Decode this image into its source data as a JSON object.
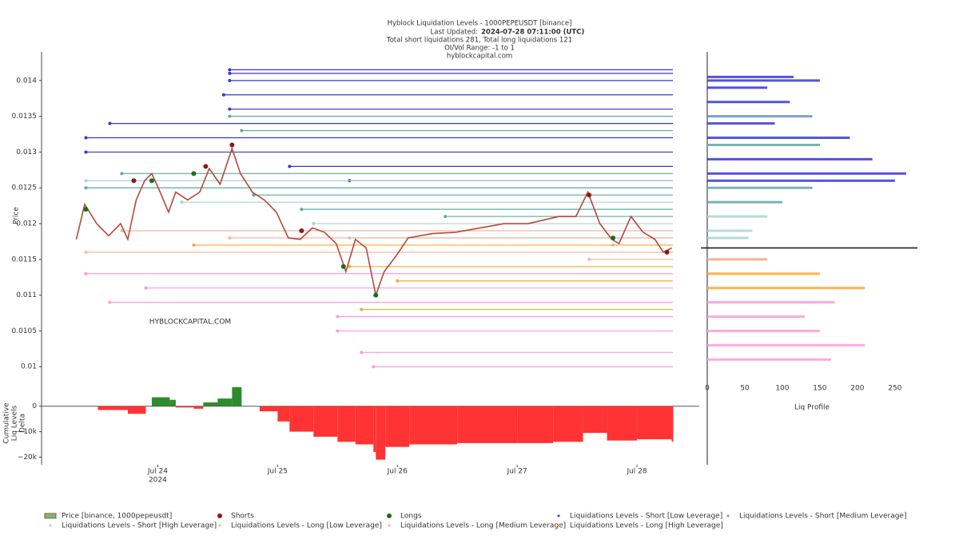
{
  "chart_data": [
    {
      "type": "line",
      "title": "Hyblock Liquidation Levels - 1000PEPEUSDT [binance]",
      "updated_label": "Last Updated:",
      "updated_value": "2024-07-28 07:11:00 (UTC)",
      "subtitle_lines": [
        "Total short liquidations 281, Total long liquidations 121",
        "OI/Vol Range: -1 to 1",
        "hyblockcapital.com"
      ],
      "watermark": "HYBLOCKCAPITAL.COM",
      "y_label": "Price",
      "xlim": [
        23.03,
        28.52
      ],
      "ylim": [
        0.00988,
        0.0144
      ],
      "yticks": [
        0.01,
        0.0105,
        0.011,
        0.0115,
        0.012,
        0.0125,
        0.013,
        0.0135,
        0.014
      ],
      "series": [
        {
          "name": "Price [binance, 1000pepeusdt]",
          "color": "#b5483a",
          "mode": "line",
          "x": [
            23.32,
            23.39,
            23.49,
            23.59,
            23.69,
            23.75,
            23.82,
            23.89,
            23.95,
            24.02,
            24.09,
            24.15,
            24.25,
            24.35,
            24.43,
            24.52,
            24.62,
            24.69,
            24.79,
            24.89,
            24.99,
            25.09,
            25.19,
            25.29,
            25.39,
            25.49,
            25.57,
            25.65,
            25.74,
            25.82,
            25.89,
            25.99,
            26.09,
            26.29,
            26.49,
            26.69,
            26.89,
            27.09,
            27.35,
            27.49,
            27.59,
            27.69,
            27.79,
            27.85,
            27.95,
            28.05,
            28.15,
            28.22,
            28.29
          ],
          "values": [
            0.01178,
            0.01227,
            0.012,
            0.01183,
            0.012,
            0.01178,
            0.01233,
            0.0126,
            0.0127,
            0.01244,
            0.01216,
            0.01244,
            0.01233,
            0.01244,
            0.01277,
            0.01255,
            0.01305,
            0.0127,
            0.01244,
            0.01233,
            0.01216,
            0.0118,
            0.01178,
            0.01194,
            0.01188,
            0.01172,
            0.01133,
            0.01178,
            0.01166,
            0.011,
            0.01133,
            0.01155,
            0.0118,
            0.01186,
            0.01188,
            0.01194,
            0.012,
            0.012,
            0.0121,
            0.0121,
            0.01244,
            0.012,
            0.01178,
            0.01172,
            0.0121,
            0.01188,
            0.01178,
            0.0116,
            0.01166
          ]
        },
        {
          "name": "Shorts",
          "color": "#8b1a1a",
          "mode": "markers",
          "x": [
            23.8,
            24.4,
            24.62,
            25.2,
            27.6,
            28.25
          ],
          "values": [
            0.0126,
            0.0128,
            0.0131,
            0.0119,
            0.0124,
            0.0116
          ]
        },
        {
          "name": "Longs",
          "color": "#1e6b1e",
          "mode": "markers",
          "x": [
            23.4,
            23.95,
            24.3,
            25.55,
            25.82,
            27.8
          ],
          "values": [
            0.0122,
            0.0126,
            0.0127,
            0.0114,
            0.011,
            0.0118
          ]
        },
        {
          "name": "Liquidations Levels - Short [Low Leverage]",
          "color": "#3535d8",
          "mode": "levels",
          "x": [
            24.6,
            24.6,
            24.6,
            24.55,
            24.6,
            23.6,
            23.4,
            23.4,
            25.1,
            25.6
          ],
          "values": [
            0.01415,
            0.0141,
            0.014,
            0.0138,
            0.0136,
            0.0134,
            0.0132,
            0.013,
            0.0128,
            0.0126
          ]
        },
        {
          "name": "Liquidations Levels - Short [Medium Leverage]",
          "color": "#5fa8a0",
          "mode": "levels",
          "x": [
            24.6,
            24.7,
            23.7,
            23.4,
            24.8,
            25.2,
            26.4
          ],
          "values": [
            0.0135,
            0.0133,
            0.0127,
            0.0125,
            0.0124,
            0.0122,
            0.0121
          ]
        },
        {
          "name": "Liquidations Levels - Short [High Leverage]",
          "color": "#a8d5cc",
          "mode": "levels",
          "x": [
            23.4,
            24.2,
            25.3,
            25.6,
            27.8
          ],
          "values": [
            0.0126,
            0.0123,
            0.012,
            0.0118,
            0.0117
          ]
        },
        {
          "name": "Liquidations Levels - Long [Low Leverage]",
          "color": "#f4b8a0",
          "mode": "levels",
          "x": [
            23.7,
            24.6,
            23.4,
            27.6
          ],
          "values": [
            0.0119,
            0.0118,
            0.0116,
            0.0115
          ]
        },
        {
          "name": "Liquidations Levels - Long [Medium Leverage]",
          "color": "#ff99dd",
          "mode": "levels",
          "x": [
            23.4,
            23.9,
            23.6,
            25.5,
            25.5,
            25.7,
            25.8
          ],
          "values": [
            0.0113,
            0.0111,
            0.0109,
            0.0107,
            0.0105,
            0.0102,
            0.01
          ]
        },
        {
          "name": "Liquidations Levels - Long [High Leverage]",
          "color": "#ffa630",
          "mode": "levels",
          "x": [
            24.3,
            25.6,
            26.0,
            25.7
          ],
          "values": [
            0.0117,
            0.0114,
            0.0112,
            0.0108
          ]
        }
      ]
    },
    {
      "type": "area",
      "y_label_lines": [
        "Cumulative",
        "Liq Levels",
        "Delta"
      ],
      "xlim": [
        23.03,
        28.52
      ],
      "xticks": [
        {
          "value": 24,
          "label": "Jul 24"
        },
        {
          "value": 25,
          "label": "Jul 25"
        },
        {
          "value": 26,
          "label": "Jul 26"
        },
        {
          "value": 27,
          "label": "Jul 27"
        },
        {
          "value": 28,
          "label": "Jul 28"
        }
      ],
      "x_year_label": "2024",
      "ylim": [
        -23000,
        9000
      ],
      "yticks": [
        {
          "value": -20000,
          "label": "−20k"
        },
        {
          "value": -10000,
          "label": "−10k"
        },
        0
      ],
      "positive_color": "#2e8b2e",
      "negative_color": "#ff3333",
      "x": [
        23.32,
        23.5,
        23.75,
        23.9,
        23.95,
        24.1,
        24.15,
        24.3,
        24.38,
        24.5,
        24.62,
        24.7,
        24.85,
        25.0,
        25.1,
        25.3,
        25.5,
        25.65,
        25.8,
        25.82,
        25.9,
        26.1,
        26.5,
        27.0,
        27.3,
        27.55,
        27.75,
        28.0,
        28.29
      ],
      "values": [
        0,
        -1500,
        -3000,
        0,
        3500,
        2500,
        -500,
        -1000,
        1500,
        3000,
        7500,
        0,
        -2000,
        -6000,
        -10000,
        -12000,
        -14000,
        -15000,
        -18000,
        -21000,
        -16000,
        -15000,
        -14500,
        -14500,
        -14000,
        -10500,
        -13500,
        -13000,
        -14000
      ]
    },
    {
      "type": "bar",
      "x_label": "Liq Profile",
      "xlim": [
        0,
        280
      ],
      "xticks": [
        0,
        50,
        100,
        150,
        200,
        250
      ],
      "ylim": [
        0.00988,
        0.0144
      ],
      "current_price": 0.01166,
      "y": [
        0.01405,
        0.014,
        0.0139,
        0.0137,
        0.0135,
        0.0134,
        0.0132,
        0.0131,
        0.0129,
        0.0127,
        0.0126,
        0.0125,
        0.0123,
        0.0121,
        0.0119,
        0.0118,
        0.0115,
        0.0113,
        0.0111,
        0.0109,
        0.0107,
        0.0105,
        0.0103,
        0.0101
      ],
      "values": [
        115,
        150,
        80,
        110,
        140,
        90,
        190,
        150,
        220,
        265,
        250,
        140,
        100,
        80,
        60,
        55,
        80,
        150,
        210,
        170,
        130,
        150,
        210,
        165
      ],
      "colors": [
        "#3535d8",
        "#3535d8",
        "#3535d8",
        "#3535d8",
        "#5f8fd8",
        "#3535d8",
        "#3535d8",
        "#5fa8a0",
        "#3535d8",
        "#3535d8",
        "#3535d8",
        "#5fa8a0",
        "#5fa8a0",
        "#a8d5cc",
        "#a8d5cc",
        "#a8d5cc",
        "#f4a582",
        "#ffa630",
        "#ffa630",
        "#ff99dd",
        "#ff99dd",
        "#ff99dd",
        "#ff99dd",
        "#ff99dd"
      ]
    }
  ]
}
